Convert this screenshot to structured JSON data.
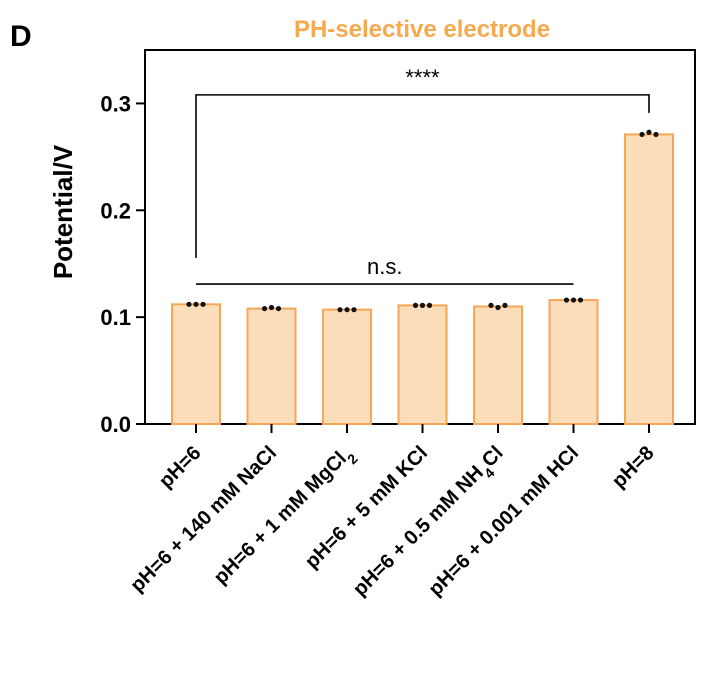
{
  "panel_label": "D",
  "chart_data": {
    "type": "bar",
    "title": "PH-selective electrode",
    "title_color": "#F7A94F",
    "ylabel": "Potential/V",
    "xlabel": "",
    "ylim": [
      0,
      0.35
    ],
    "yticks": [
      "0.0",
      "0.1",
      "0.2",
      "0.3"
    ],
    "ytick_values": [
      0,
      0.1,
      0.2,
      0.3
    ],
    "bar_fill": "#FCDDB9",
    "bar_stroke": "#F5A657",
    "point_color": "#111111",
    "grid": false,
    "categories": [
      {
        "pre": "pH=6",
        "sub": "",
        "post": ""
      },
      {
        "pre": "pH=6 + 140 mM NaCl",
        "sub": "",
        "post": ""
      },
      {
        "pre": "pH=6 + 1 mM MgCl",
        "sub": "2",
        "post": ""
      },
      {
        "pre": "pH=6 + 5 mM KCl",
        "sub": "",
        "post": ""
      },
      {
        "pre": "pH=6 + 0.5 mM NH",
        "sub": "4",
        "post": "Cl"
      },
      {
        "pre": "pH=6 + 0.001 mM HCl",
        "sub": "",
        "post": ""
      },
      {
        "pre": "pH=8",
        "sub": "",
        "post": ""
      }
    ],
    "values": [
      0.112,
      0.108,
      0.107,
      0.111,
      0.11,
      0.116,
      0.271
    ],
    "points": [
      [
        0.112,
        0.112,
        0.112
      ],
      [
        0.108,
        0.109,
        0.108
      ],
      [
        0.107,
        0.107,
        0.107
      ],
      [
        0.111,
        0.111,
        0.111
      ],
      [
        0.111,
        0.109,
        0.111
      ],
      [
        0.116,
        0.116,
        0.116
      ],
      [
        0.271,
        0.273,
        0.271
      ]
    ],
    "annotations": [
      {
        "text": "****",
        "type": "bracket",
        "from": 0,
        "to": 6,
        "y": 0.308
      },
      {
        "text": "n.s.",
        "type": "line",
        "from": 0,
        "to": 5,
        "y": 0.131
      }
    ]
  }
}
